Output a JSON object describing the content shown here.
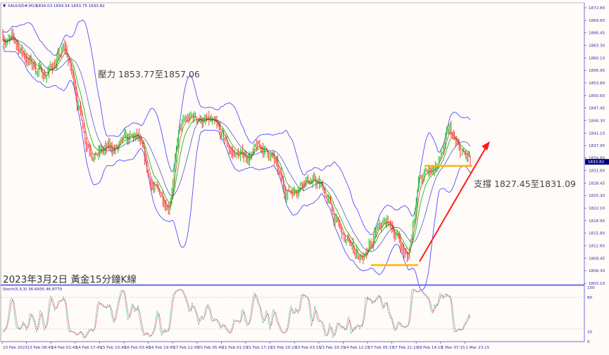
{
  "header": {
    "symbol": "XAUUSD#,M15",
    "ohlc": "1834.03 1834.34 1833.75 1833.82"
  },
  "annotations": {
    "resistance": "壓力 1853.77至1857.06",
    "support": "支撐 1827.45至1831.09",
    "caption": "2023年3月2日 黃金15分鐘K線"
  },
  "stoch_panel": {
    "label": "Stoch(5,3,3) 36.6935 46.8770",
    "levels": [
      "100",
      "80",
      "20",
      "0"
    ]
  },
  "colors": {
    "background": "#fffbf8",
    "bands": "#3a3aff",
    "up_candle": "#00c000",
    "down_candle": "#ff2020",
    "support_line": "#ffb400",
    "trend_arrow": "#ff1a1a",
    "stoch_main": "#20a8a0",
    "stoch_signal": "#e03030",
    "price_tag": "#000080"
  },
  "chart_data": {
    "type": "candlestick",
    "symbol": "XAUUSD#",
    "timeframe": "M15",
    "indicators": [
      "Bollinger Bands",
      "Moving Averages",
      "Stochastic(5,3,3)"
    ],
    "current_price": "1833.82",
    "ylim": [
      1803.1,
      1872.8
    ],
    "y_ticks": [
      "1872.80",
      "1869.60",
      "1866.45",
      "1863.30",
      "1860.10",
      "1856.95",
      "1853.80",
      "1850.60",
      "1847.45",
      "1844.30",
      "1841.10",
      "1837.95",
      "1834.80",
      "1831.60",
      "1828.45",
      "1825.30",
      "1822.10",
      "1818.95",
      "1815.80",
      "1812.60",
      "1809.45",
      "1806.30",
      "1803.10"
    ],
    "x_ticks": [
      "10 Feb 2023",
      "13 Feb 08:45",
      "14 Feb 01:45",
      "14 Feb 17:45",
      "15 Feb 10:45",
      "16 Feb 03:45",
      "16 Feb 19:45",
      "17 Feb 12:45",
      "20 Feb 05:45",
      "21 Feb 01:15",
      "21 Feb 17:15",
      "22 Feb 10:15",
      "23 Feb 03:15",
      "23 Feb 19:15",
      "24 Feb 12:15",
      "27 Feb 05:15",
      "27 Feb 21:15",
      "28 Feb 14:15",
      "1 Mar 07:15",
      "1 Mar 23:15"
    ],
    "approx_close_path": [
      1866,
      1864,
      1861,
      1858,
      1856,
      1859,
      1862,
      1852,
      1840,
      1837,
      1836.5,
      1837,
      1838,
      1839,
      1829,
      1825,
      1824,
      1842,
      1844,
      1845,
      1843,
      1839,
      1836,
      1835,
      1836,
      1837,
      1835,
      1826,
      1827,
      1831,
      1829,
      1826,
      1819,
      1813,
      1811,
      1809,
      1815,
      1818,
      1815,
      1809,
      1829,
      1831,
      1834,
      1841,
      1835,
      1833.82
    ],
    "support_levels": [
      1832.8,
      1807.7
    ],
    "grid": false
  }
}
